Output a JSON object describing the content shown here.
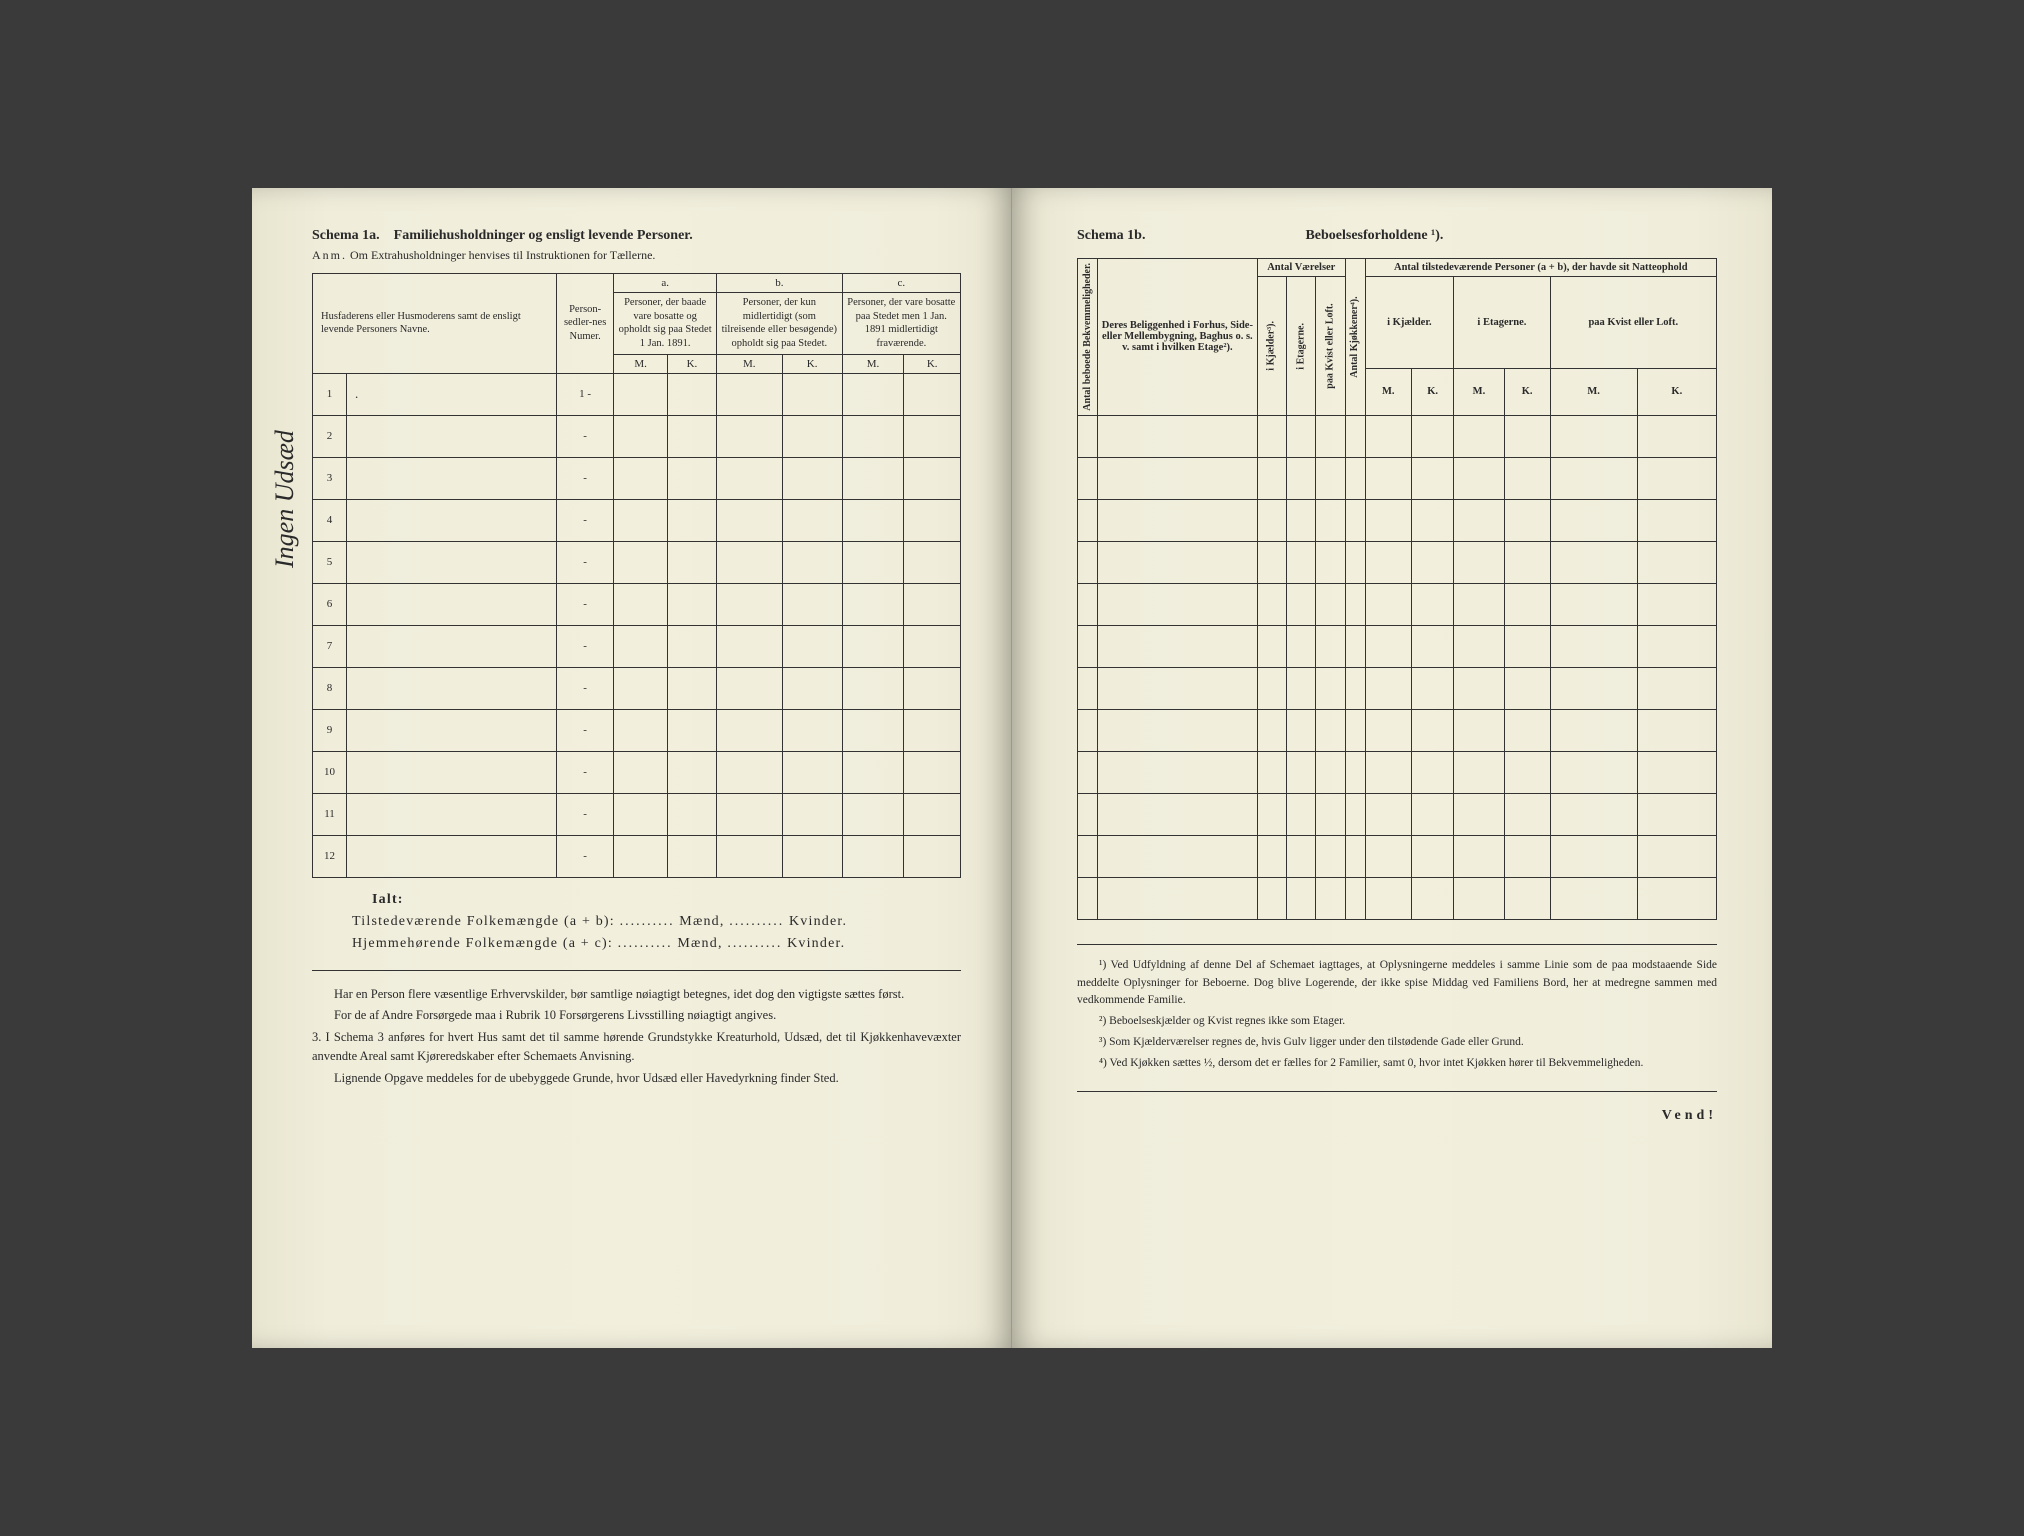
{
  "left": {
    "schema_label": "Schema 1a.",
    "title": "Familiehusholdninger og ensligt levende Personer.",
    "anm_label": "Anm.",
    "anm_text": "Om Extrahusholdninger henvises til Instruktionen for Tællerne.",
    "headers": {
      "names": "Husfaderens eller Husmoderens samt de ensligt levende Personers Navne.",
      "personseddler": "Person-sedler-nes Numer.",
      "a": "a.",
      "a_text": "Personer, der baade vare bosatte og opholdt sig paa Stedet 1 Jan. 1891.",
      "b": "b.",
      "b_text": "Personer, der kun midlertidigt (som tilreisende eller besøgende) opholdt sig paa Stedet.",
      "c": "c.",
      "c_text": "Personer, der vare bosatte paa Stedet men 1 Jan. 1891 midlertidigt fraværende.",
      "m": "M.",
      "k": "K."
    },
    "rows": [
      1,
      2,
      3,
      4,
      5,
      6,
      7,
      8,
      9,
      10,
      11,
      12
    ],
    "row1_person": "1 -",
    "totals": {
      "ialt": "Ialt:",
      "line1a": "Tilstedeværende Folkemængde (a + b):",
      "line2a": "Hjemmehørende Folkemængde (a + c):",
      "maend": "Mænd,",
      "kvinder": "Kvinder.",
      "dots": ".........."
    },
    "body": {
      "p1": "Har en Person flere væsentlige Erhvervskilder, bør samtlige nøiagtigt betegnes, idet dog den vigtigste sættes først.",
      "p2": "For de af Andre Forsørgede maa i Rubrik 10 Forsørgerens Livsstilling nøiagtigt angives.",
      "p3": "3.  I Schema 3 anføres for hvert Hus samt det til samme hørende Grundstykke Kreaturhold, Udsæd, det til Kjøkkenhavevæxter anvendte Areal samt Kjøreredskaber efter Schemaets Anvisning.",
      "p4": "Lignende Opgave meddeles for de ubebyggede Grunde, hvor Udsæd eller Havedyrkning finder Sted."
    },
    "handwriting": "Ingen Udsæd"
  },
  "right": {
    "schema_label": "Schema 1b.",
    "title": "Beboelsesforholdene ¹).",
    "headers": {
      "antal_bekv": "Antal beboede Bekvemmeligheder.",
      "beliggenhed": "Deres Beliggenhed i Forhus, Side- eller Mellembygning, Baghus o. s. v. samt i hvilken Etage²).",
      "antal_vaer": "Antal Værelser",
      "i_kjaelder": "i Kjælder³).",
      "i_etagerne_v": "i Etagerne.",
      "paa_kvist_v": "paa Kvist eller Loft.",
      "antal_kjok": "Antal Kjøkkener⁴).",
      "antal_pers": "Antal tilstedeværende Personer (a + b), der havde sit Natteophold",
      "i_kjael": "i Kjælder.",
      "i_etag": "i Etagerne.",
      "paa_kvist": "paa Kvist eller Loft.",
      "m": "M.",
      "k": "K."
    },
    "footnotes": {
      "f1": "¹) Ved Udfyldning af denne Del af Schemaet iagttages, at Oplysningerne meddeles i samme Linie som de paa modstaaende Side meddelte Oplysninger for Beboerne. Dog blive Logerende, der ikke spise Middag ved Familiens Bord, her at medregne sammen med vedkommende Familie.",
      "f2": "²) Beboelseskjælder og Kvist regnes ikke som Etager.",
      "f3": "³) Som Kjælderværelser regnes de, hvis Gulv ligger under den tilstødende Gade eller Grund.",
      "f4": "⁴) Ved Kjøkken sættes ½, dersom det er fælles for 2 Familier, samt 0, hvor intet Kjøkken hører til Bekvemmeligheden."
    },
    "vend": "Vend!"
  }
}
